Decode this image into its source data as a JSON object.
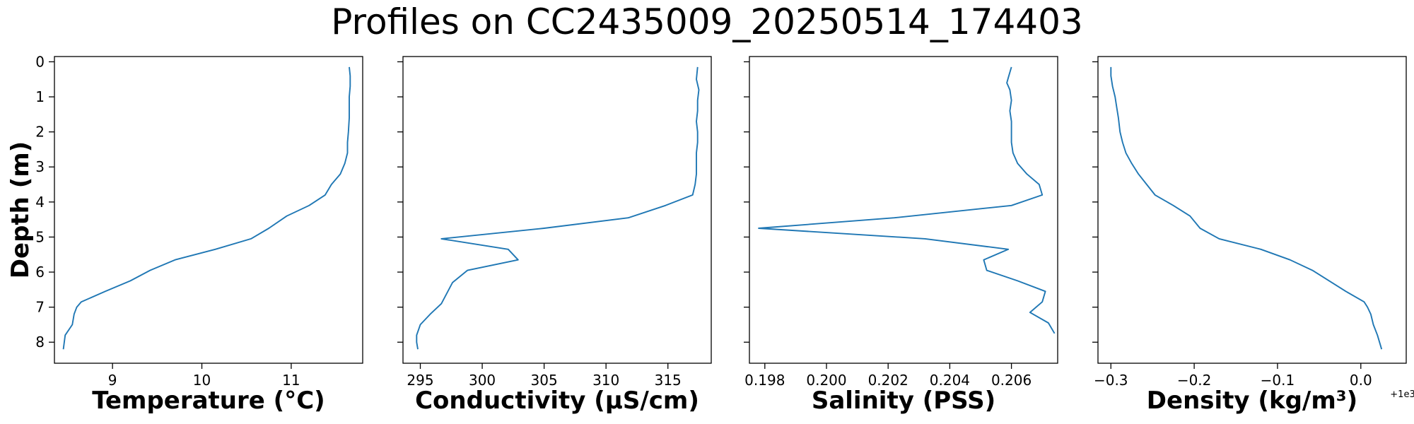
{
  "title": "Profiles on CC2435009_20250514_174403",
  "colors": {
    "series": "#1f77b4",
    "axes": "#000000"
  },
  "chart_data": [
    {
      "type": "line",
      "xlabel": "Temperature (°C)",
      "ylabel": "Depth (m)",
      "xlim": [
        8.35,
        11.8
      ],
      "ylim": [
        8.6,
        -0.15
      ],
      "xticks": [
        9,
        10,
        11
      ],
      "xtick_labels": [
        "9",
        "10",
        "11"
      ],
      "yticks": [
        0,
        1,
        2,
        3,
        4,
        5,
        6,
        7,
        8
      ],
      "ytick_labels": [
        "0",
        "1",
        "2",
        "3",
        "4",
        "5",
        "6",
        "7",
        "8"
      ],
      "offset_label": "",
      "grid": false,
      "series": [
        {
          "x": [
            11.65,
            11.66,
            11.66,
            11.65,
            11.65,
            11.65,
            11.64,
            11.63,
            11.63,
            11.6,
            11.55,
            11.45,
            11.38,
            11.2,
            10.95,
            10.75,
            10.55,
            10.15,
            9.7,
            9.42,
            9.2,
            8.92,
            8.65,
            8.6,
            8.57,
            8.55,
            8.47,
            8.45
          ],
          "y": [
            0.15,
            0.4,
            0.7,
            1.0,
            1.3,
            1.6,
            2.0,
            2.3,
            2.6,
            2.9,
            3.2,
            3.5,
            3.8,
            4.1,
            4.4,
            4.75,
            5.05,
            5.35,
            5.65,
            5.95,
            6.25,
            6.55,
            6.85,
            7.0,
            7.2,
            7.5,
            7.8,
            8.2
          ]
        }
      ]
    },
    {
      "type": "line",
      "xlabel": "Conductivity (µS/cm)",
      "ylabel": "",
      "xlim": [
        293.6,
        318.5
      ],
      "ylim": [
        8.6,
        -0.15
      ],
      "xticks": [
        295,
        300,
        305,
        310,
        315
      ],
      "xtick_labels": [
        "295",
        "300",
        "305",
        "310",
        "315"
      ],
      "yticks": [
        0,
        1,
        2,
        3,
        4,
        5,
        6,
        7,
        8
      ],
      "ytick_labels": [],
      "offset_label": "",
      "grid": false,
      "series": [
        {
          "x": [
            317.4,
            317.3,
            317.5,
            317.4,
            317.4,
            317.3,
            317.4,
            317.4,
            317.3,
            317.3,
            317.3,
            317.2,
            317.0,
            314.8,
            311.8,
            305.0,
            296.7,
            302.1,
            302.9,
            298.8,
            297.6,
            296.7,
            295.8,
            295.0,
            294.7,
            294.7,
            294.8
          ],
          "y": [
            0.15,
            0.5,
            0.8,
            1.1,
            1.4,
            1.7,
            2.0,
            2.3,
            2.6,
            2.9,
            3.2,
            3.5,
            3.8,
            4.1,
            4.45,
            4.75,
            5.05,
            5.35,
            5.65,
            5.95,
            6.3,
            6.9,
            7.2,
            7.5,
            7.8,
            8.0,
            8.2
          ]
        }
      ]
    },
    {
      "type": "line",
      "xlabel": "Salinity (PSS)",
      "ylabel": "",
      "xlim": [
        0.1975,
        0.2075
      ],
      "ylim": [
        8.6,
        -0.15
      ],
      "xticks": [
        0.198,
        0.2,
        0.202,
        0.204,
        0.206
      ],
      "xtick_labels": [
        "0.198",
        "0.200",
        "0.202",
        "0.204",
        "0.206"
      ],
      "yticks": [
        0,
        1,
        2,
        3,
        4,
        5,
        6,
        7,
        8
      ],
      "ytick_labels": [],
      "offset_label": "",
      "grid": false,
      "series": [
        {
          "x": [
            0.206,
            0.2059,
            0.20585,
            0.20595,
            0.206,
            0.20595,
            0.206,
            0.206,
            0.206,
            0.20605,
            0.2062,
            0.2065,
            0.2069,
            0.207,
            0.206,
            0.2022,
            0.1978,
            0.2032,
            0.2059,
            0.2051,
            0.2052,
            0.2062,
            0.2071,
            0.207,
            0.2066,
            0.2072,
            0.2074
          ],
          "y": [
            0.15,
            0.45,
            0.6,
            0.8,
            1.1,
            1.4,
            1.7,
            2.0,
            2.3,
            2.6,
            2.9,
            3.2,
            3.5,
            3.8,
            4.1,
            4.45,
            4.75,
            5.05,
            5.35,
            5.65,
            5.95,
            6.25,
            6.55,
            6.85,
            7.15,
            7.45,
            7.75
          ]
        }
      ]
    },
    {
      "type": "line",
      "xlabel": "Density (kg/m³)",
      "ylabel": "",
      "xlim": [
        -0.3155,
        0.0545
      ],
      "ylim": [
        8.6,
        -0.15
      ],
      "xticks": [
        -0.3,
        -0.2,
        -0.1,
        0.0
      ],
      "xtick_labels": [
        "−0.3",
        "−0.2",
        "−0.1",
        "0.0"
      ],
      "yticks": [
        0,
        1,
        2,
        3,
        4,
        5,
        6,
        7,
        8
      ],
      "ytick_labels": [],
      "offset_label": "+1e3",
      "grid": false,
      "series": [
        {
          "x": [
            -0.3,
            -0.3,
            -0.298,
            -0.295,
            -0.293,
            -0.291,
            -0.289,
            -0.286,
            -0.282,
            -0.275,
            -0.267,
            -0.257,
            -0.247,
            -0.225,
            -0.205,
            -0.193,
            -0.17,
            -0.12,
            -0.085,
            -0.058,
            -0.038,
            -0.018,
            0.004,
            0.008,
            0.012,
            0.015,
            0.02,
            0.025
          ],
          "y": [
            0.15,
            0.4,
            0.7,
            1.0,
            1.3,
            1.6,
            2.0,
            2.3,
            2.6,
            2.9,
            3.2,
            3.5,
            3.8,
            4.1,
            4.4,
            4.75,
            5.05,
            5.35,
            5.65,
            5.95,
            6.25,
            6.55,
            6.85,
            7.0,
            7.2,
            7.5,
            7.8,
            8.2
          ]
        }
      ]
    }
  ]
}
